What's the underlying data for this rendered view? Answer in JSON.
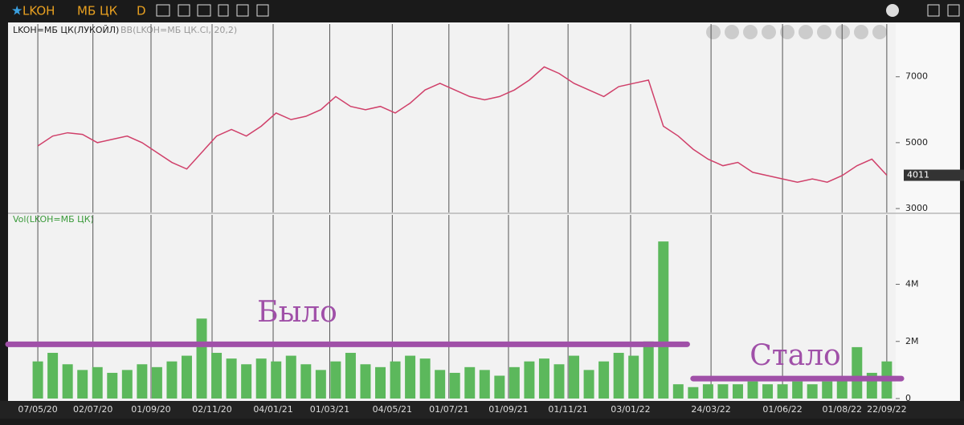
{
  "toolbar": {
    "symbol": "LKOH",
    "market": "МБ ЦК",
    "period": "D"
  },
  "chart_data": [
    {
      "type": "line",
      "title": "LKOH=МБ ЦК(ЛУКОЙЛ)",
      "subtitle": "BB(LKOH=МБ ЦК.Cl, 20,2)",
      "x": [
        0,
        0.5,
        1,
        1.5,
        2,
        2.5,
        3,
        3.5,
        4,
        4.5,
        5,
        5.5,
        6,
        6.5,
        7,
        7.5,
        8,
        8.5,
        9,
        9.5,
        10,
        10.5,
        11,
        11.5,
        12,
        12.5,
        13,
        13.5,
        14,
        14.5,
        15,
        15.5,
        16,
        16.5,
        17,
        17.5,
        18,
        18.5,
        19,
        19.5,
        20,
        20.5,
        21,
        21.5,
        22,
        22.5,
        23,
        23.5,
        24,
        24.5,
        25,
        25.5,
        26,
        26.5,
        27,
        27.5,
        28,
        28.5
      ],
      "values": [
        4900,
        5200,
        5300,
        5250,
        5000,
        5100,
        5200,
        5000,
        4700,
        4400,
        4200,
        4700,
        5200,
        5400,
        5200,
        5500,
        5900,
        5700,
        5800,
        6000,
        6400,
        6100,
        6000,
        6100,
        5900,
        6200,
        6600,
        6800,
        6600,
        6400,
        6300,
        6400,
        6600,
        6900,
        7300,
        7100,
        6800,
        6600,
        6400,
        6700,
        6800,
        6900,
        5500,
        5200,
        4800,
        4500,
        4300,
        4400,
        4100,
        4000,
        3900,
        3800,
        3900,
        3800,
        4000,
        4300,
        4500,
        4011
      ],
      "color": "#d0406a",
      "xlim": [
        -1,
        28.8
      ],
      "ylim": [
        2880,
        8600
      ],
      "yticks": [
        3000,
        5000,
        7000
      ],
      "grid": true
    },
    {
      "type": "bar",
      "title": "Vol(LKOH=МБ ЦК)",
      "x": [
        0,
        0.5,
        1,
        1.5,
        2,
        2.5,
        3,
        3.5,
        4,
        4.5,
        5,
        5.5,
        6,
        6.5,
        7,
        7.5,
        8,
        8.5,
        9,
        9.5,
        10,
        10.5,
        11,
        11.5,
        12,
        12.5,
        13,
        13.5,
        14,
        14.5,
        15,
        15.5,
        16,
        16.5,
        17,
        17.5,
        18,
        18.5,
        19,
        19.5,
        20,
        20.5,
        21,
        21.5,
        22,
        22.5,
        23,
        23.5,
        24,
        24.5,
        25,
        25.5,
        26,
        26.5,
        27,
        27.5,
        28,
        28.5
      ],
      "values": [
        1300000,
        1600000,
        1200000,
        1000000,
        1100000,
        900000,
        1000000,
        1200000,
        1100000,
        1300000,
        1500000,
        2800000,
        1600000,
        1400000,
        1200000,
        1400000,
        1300000,
        1500000,
        1200000,
        1000000,
        1300000,
        1600000,
        1200000,
        1100000,
        1300000,
        1500000,
        1400000,
        1000000,
        900000,
        1100000,
        1000000,
        800000,
        1100000,
        1300000,
        1400000,
        1200000,
        1500000,
        1000000,
        1300000,
        1600000,
        1500000,
        2000000,
        5500000,
        500000,
        400000,
        500000,
        500000,
        500000,
        600000,
        500000,
        500000,
        600000,
        500000,
        600000,
        700000,
        1800000,
        900000,
        1300000
      ],
      "color": "#5cb85c",
      "xlim": [
        -1,
        28.8
      ],
      "ylim": [
        0,
        6430000
      ],
      "yticks": [
        0,
        {
          "value": 2000000,
          "label": "2M"
        },
        {
          "value": 4000000,
          "label": "4M"
        }
      ],
      "xticks": [
        {
          "value": 0,
          "label": "07/05/20"
        },
        {
          "value": 1.85,
          "label": "02/07/20"
        },
        {
          "value": 3.8,
          "label": "01/09/20"
        },
        {
          "value": 5.85,
          "label": "02/11/20"
        },
        {
          "value": 7.9,
          "label": "04/01/21"
        },
        {
          "value": 9.8,
          "label": "01/03/21"
        },
        {
          "value": 11.9,
          "label": "04/05/21"
        },
        {
          "value": 13.8,
          "label": "01/07/21"
        },
        {
          "value": 15.8,
          "label": "01/09/21"
        },
        {
          "value": 17.8,
          "label": "01/11/21"
        },
        {
          "value": 19.9,
          "label": "03/01/22"
        },
        {
          "value": 22.6,
          "label": "24/03/22"
        },
        {
          "value": 25.0,
          "label": "01/06/22"
        },
        {
          "value": 27.0,
          "label": "01/08/22"
        },
        {
          "value": 28.5,
          "label": "22/09/22"
        }
      ],
      "annotations": [
        {
          "text": "Было",
          "value": 1900000
        },
        {
          "text": "Стало",
          "value": 700000
        }
      ],
      "grid": true
    }
  ]
}
